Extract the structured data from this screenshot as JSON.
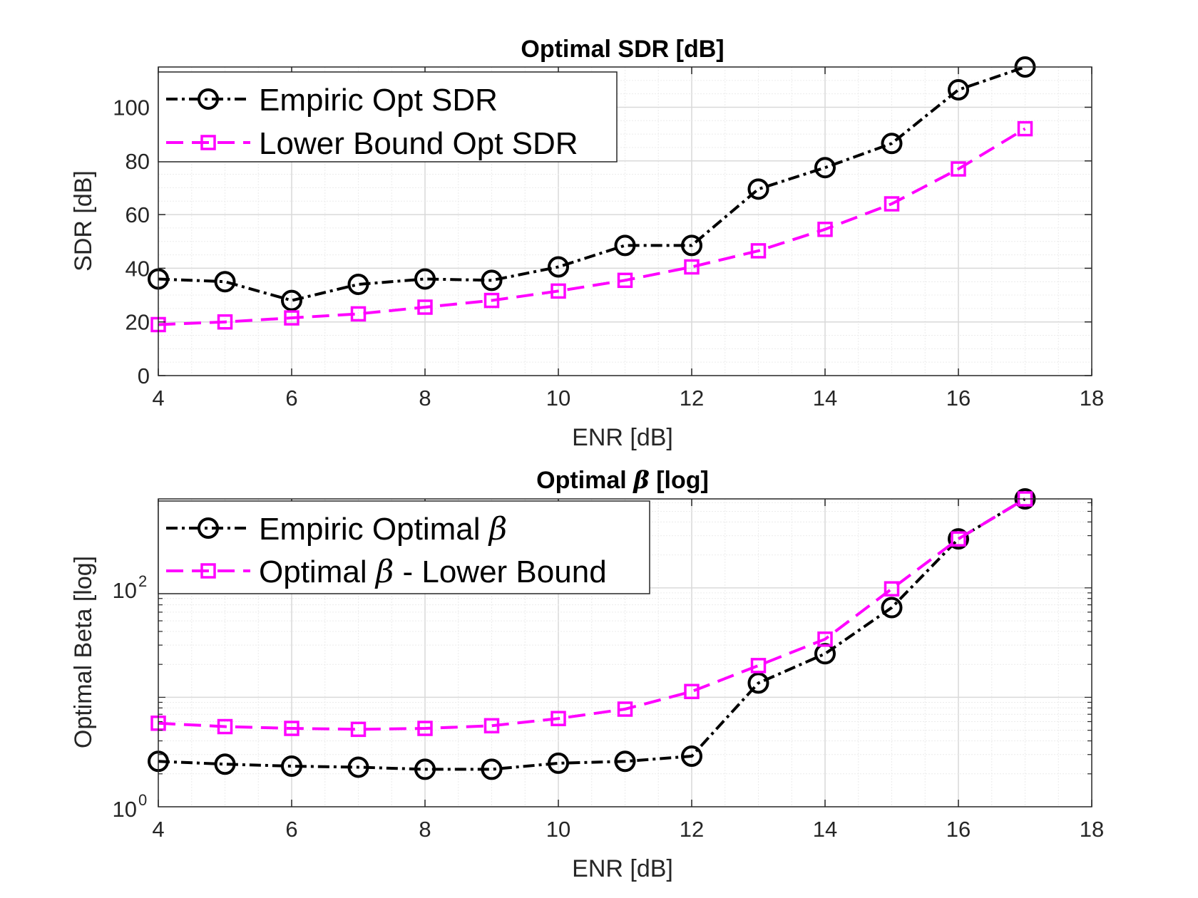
{
  "chart_data": [
    {
      "type": "line",
      "title": "Optimal SDR [dB]",
      "xlabel": "ENR [dB]",
      "ylabel": "SDR [dB]",
      "xlim": [
        4,
        18
      ],
      "ylim": [
        0,
        115
      ],
      "xticks": [
        "4",
        "6",
        "8",
        "10",
        "12",
        "14",
        "16",
        "18"
      ],
      "yticks": [
        "0",
        "20",
        "40",
        "60",
        "80",
        "100"
      ],
      "grid": true,
      "minor_grid": true,
      "legend_position": "top-left",
      "x": [
        4,
        5,
        6,
        7,
        8,
        9,
        10,
        11,
        12,
        13,
        14,
        15,
        16,
        17
      ],
      "series": [
        {
          "name": "Empiric Opt SDR",
          "color": "#000000",
          "marker": "circle",
          "linestyle": "dash-dot",
          "values": [
            36,
            35,
            28,
            34,
            36,
            35.5,
            40.5,
            48.5,
            48.5,
            69.5,
            77.5,
            86.5,
            106.5,
            115
          ]
        },
        {
          "name": "Lower Bound Opt SDR",
          "color": "#ff00ff",
          "marker": "square",
          "linestyle": "dashed",
          "values": [
            19,
            20,
            21.5,
            23,
            25.5,
            28,
            31.5,
            35.5,
            40.5,
            46.5,
            54.5,
            64,
            77,
            92
          ]
        }
      ]
    },
    {
      "type": "line",
      "title": {
        "pre": "Optimal ",
        "sym": "β",
        "post": " [log]"
      },
      "xlabel": "ENR [dB]",
      "ylabel": "Optimal Beta [log]",
      "yscale": "log",
      "xlim": [
        4,
        18
      ],
      "ylim": [
        1,
        650
      ],
      "xticks": [
        "4",
        "6",
        "8",
        "10",
        "12",
        "14",
        "16",
        "18"
      ],
      "yticks": [
        {
          "base": "10",
          "exp": "0",
          "value": 1
        },
        {
          "base": "10",
          "exp": "2",
          "value": 100
        }
      ],
      "grid": true,
      "minor_grid": true,
      "legend_position": "top-left",
      "x": [
        4,
        5,
        6,
        7,
        8,
        9,
        10,
        11,
        12,
        13,
        14,
        15,
        16,
        17
      ],
      "series": [
        {
          "name": {
            "pre": "Empiric Optimal ",
            "sym": "β",
            "post": ""
          },
          "color": "#000000",
          "marker": "circle",
          "linestyle": "dash-dot",
          "values": [
            2.6,
            2.45,
            2.35,
            2.3,
            2.2,
            2.2,
            2.5,
            2.6,
            2.9,
            13.5,
            25,
            66,
            280,
            1000
          ]
        },
        {
          "name": {
            "pre": "Optimal ",
            "sym": "β",
            "post": " - Lower Bound"
          },
          "color": "#ff00ff",
          "marker": "square",
          "linestyle": "dashed",
          "values": [
            5.8,
            5.4,
            5.2,
            5.1,
            5.2,
            5.5,
            6.4,
            7.8,
            11.3,
            19.5,
            34,
            98,
            280,
            1280
          ]
        }
      ]
    }
  ]
}
